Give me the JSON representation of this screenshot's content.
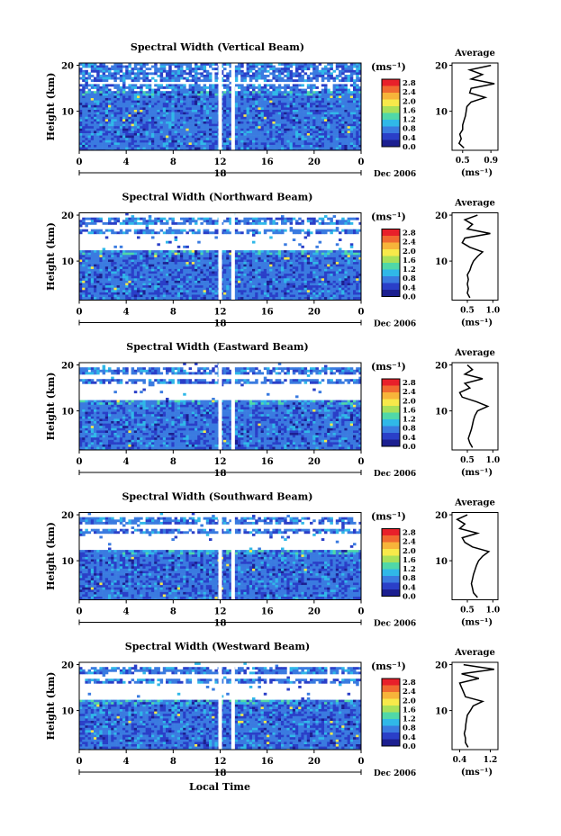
{
  "colorbar": {
    "unit_label": "(ms⁻¹)",
    "ticks": [
      "2.8",
      "2.4",
      "2.0",
      "1.6",
      "1.2",
      "0.8",
      "0.4",
      "0.0"
    ],
    "colors": [
      "#e8202a",
      "#f06a30",
      "#f7b43a",
      "#f7e94a",
      "#a8e05a",
      "#50d8a8",
      "#30b8e8",
      "#3a7be0",
      "#2a3fc8",
      "#1c1f90"
    ]
  },
  "x_ticks": [
    "0",
    "4",
    "8",
    "12",
    "16",
    "20",
    "0"
  ],
  "date_day": "18",
  "date_month": "Dec 2006",
  "x_axis_label": "Local Time",
  "y_axis_label": "Height (km)",
  "y_ticks": [
    "20",
    "10"
  ],
  "average_title": "Average",
  "average_unit": "(ms⁻¹)",
  "chart_data": [
    {
      "type": "heatmap",
      "title": "Spectral Width (Vertical Beam)",
      "x_range": [
        0,
        24
      ],
      "y_range": [
        1.5,
        20.5
      ],
      "average": {
        "type": "line",
        "xticks": [
          "0.5",
          "0.9"
        ],
        "xlim": [
          0.35,
          1.0
        ],
        "heights": [
          2,
          3,
          4,
          5,
          6,
          7,
          8,
          9,
          10,
          11,
          12,
          13,
          14,
          15,
          16,
          17,
          18,
          19,
          20
        ],
        "values": [
          0.52,
          0.45,
          0.48,
          0.46,
          0.5,
          0.5,
          0.52,
          0.54,
          0.55,
          0.56,
          0.62,
          0.82,
          0.6,
          0.62,
          0.95,
          0.62,
          0.78,
          0.6,
          0.9
        ]
      }
    },
    {
      "type": "heatmap",
      "title": "Spectral Width (Northward Beam)",
      "x_range": [
        0,
        24
      ],
      "y_range": [
        1.5,
        20.5
      ],
      "average": {
        "type": "line",
        "xticks": [
          "0.5",
          "1.0"
        ],
        "xlim": [
          0.2,
          1.1
        ],
        "heights": [
          2,
          3,
          4,
          5,
          6,
          7,
          8,
          9,
          10,
          11,
          12,
          13,
          14,
          15,
          16,
          17,
          18,
          19,
          20
        ],
        "values": [
          0.55,
          0.5,
          0.52,
          0.5,
          0.52,
          0.5,
          0.55,
          0.58,
          0.62,
          0.7,
          0.8,
          0.55,
          0.4,
          0.45,
          0.95,
          0.5,
          0.6,
          0.45,
          0.7
        ]
      }
    },
    {
      "type": "heatmap",
      "title": "Spectral Width (Eastward Beam)",
      "x_range": [
        0,
        24
      ],
      "y_range": [
        1.5,
        20.5
      ],
      "average": {
        "type": "line",
        "xticks": [
          "0.5",
          "1.0"
        ],
        "xlim": [
          0.2,
          1.1
        ],
        "heights": [
          2,
          3,
          4,
          5,
          6,
          7,
          8,
          9,
          10,
          11,
          12,
          13,
          14,
          15,
          16,
          17,
          18,
          19,
          20
        ],
        "values": [
          0.6,
          0.55,
          0.52,
          0.55,
          0.58,
          0.6,
          0.62,
          0.65,
          0.7,
          0.9,
          0.68,
          0.4,
          0.35,
          0.55,
          0.45,
          0.8,
          0.45,
          0.6,
          0.5
        ]
      }
    },
    {
      "type": "heatmap",
      "title": "Spectral Width (Southward Beam)",
      "x_range": [
        0,
        24
      ],
      "y_range": [
        1.5,
        20.5
      ],
      "average": {
        "type": "line",
        "xticks": [
          "0.5",
          "1.0"
        ],
        "xlim": [
          0.2,
          1.1
        ],
        "heights": [
          2,
          3,
          4,
          5,
          6,
          7,
          8,
          9,
          10,
          11,
          12,
          13,
          14,
          15,
          16,
          17,
          18,
          19,
          20
        ],
        "values": [
          0.7,
          0.62,
          0.6,
          0.58,
          0.6,
          0.62,
          0.65,
          0.68,
          0.72,
          0.8,
          0.92,
          0.6,
          0.45,
          0.4,
          0.7,
          0.35,
          0.45,
          0.3,
          0.5
        ]
      }
    },
    {
      "type": "heatmap",
      "title": "Spectral Width (Westward Beam)",
      "x_range": [
        0,
        24
      ],
      "y_range": [
        1.5,
        20.5
      ],
      "average": {
        "type": "line",
        "xticks": [
          "0.4",
          "1.2"
        ],
        "xlim": [
          0.2,
          1.4
        ],
        "heights": [
          2,
          3,
          4,
          5,
          6,
          7,
          8,
          9,
          10,
          11,
          12,
          13,
          14,
          15,
          16,
          17,
          18,
          19,
          20
        ],
        "values": [
          0.62,
          0.55,
          0.55,
          0.52,
          0.55,
          0.56,
          0.58,
          0.6,
          0.68,
          0.75,
          1.0,
          0.55,
          0.5,
          0.45,
          0.4,
          0.9,
          0.45,
          1.3,
          0.5
        ]
      }
    }
  ]
}
